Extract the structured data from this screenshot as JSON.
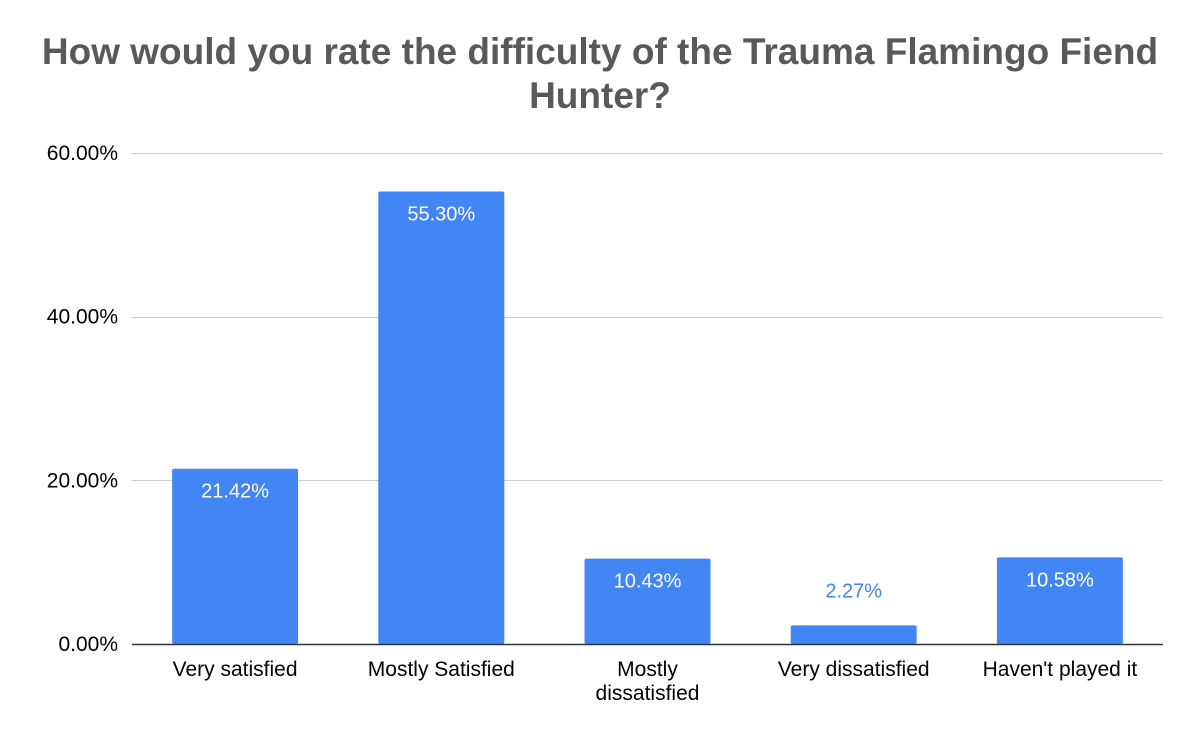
{
  "chart_data": {
    "type": "bar",
    "title": "How would you rate the difficulty of the Trauma Flamingo Fiend Hunter?",
    "xlabel": "",
    "ylabel": "",
    "categories": [
      [
        "Very satisfied"
      ],
      [
        "Mostly Satisfied"
      ],
      [
        "Mostly",
        "dissatisfied"
      ],
      [
        "Very dissatisfied"
      ],
      [
        "Haven't played it"
      ]
    ],
    "values": [
      21.42,
      55.3,
      10.43,
      2.27,
      10.58
    ],
    "value_labels": [
      "21.42%",
      "55.30%",
      "10.43%",
      "2.27%",
      "10.58%"
    ],
    "ylim": [
      0,
      60
    ],
    "yticks": [
      0,
      20,
      40,
      60
    ],
    "ytick_labels": [
      "0.00%",
      "20.00%",
      "40.00%",
      "60.00%"
    ],
    "grid": true,
    "legend": "none",
    "colors": {
      "bar": "#4285f4",
      "grid": "#cccccc",
      "axis": "#333333",
      "label_inside": "#ffffff",
      "label_outside": "#4285f4"
    }
  }
}
